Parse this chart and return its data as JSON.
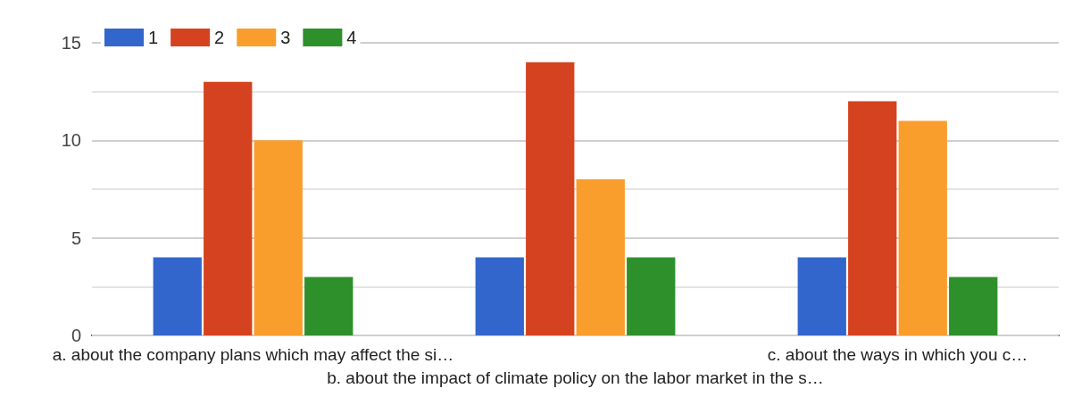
{
  "chart_data": {
    "type": "bar",
    "categories": [
      "a. about the company plans which may affect the si…",
      "b. about the impact of climate policy on the labor market in the s…",
      "c. about the ways in which you c…"
    ],
    "series": [
      {
        "name": "1",
        "color": "#3366cc",
        "values": [
          4,
          4,
          4
        ]
      },
      {
        "name": "2",
        "color": "#d5421f",
        "values": [
          13,
          14,
          12
        ]
      },
      {
        "name": "3",
        "color": "#f99e2d",
        "values": [
          10,
          8,
          11
        ]
      },
      {
        "name": "4",
        "color": "#2e902b",
        "values": [
          3,
          4,
          3
        ]
      }
    ],
    "ylim": [
      0,
      15
    ],
    "yticks": [
      0,
      {
        "value": 2.5,
        "label": null
      },
      5,
      {
        "value": 7.5,
        "label": null
      },
      10,
      {
        "value": 12.5,
        "label": null
      },
      15
    ],
    "grid": "y",
    "legend": "top left"
  }
}
